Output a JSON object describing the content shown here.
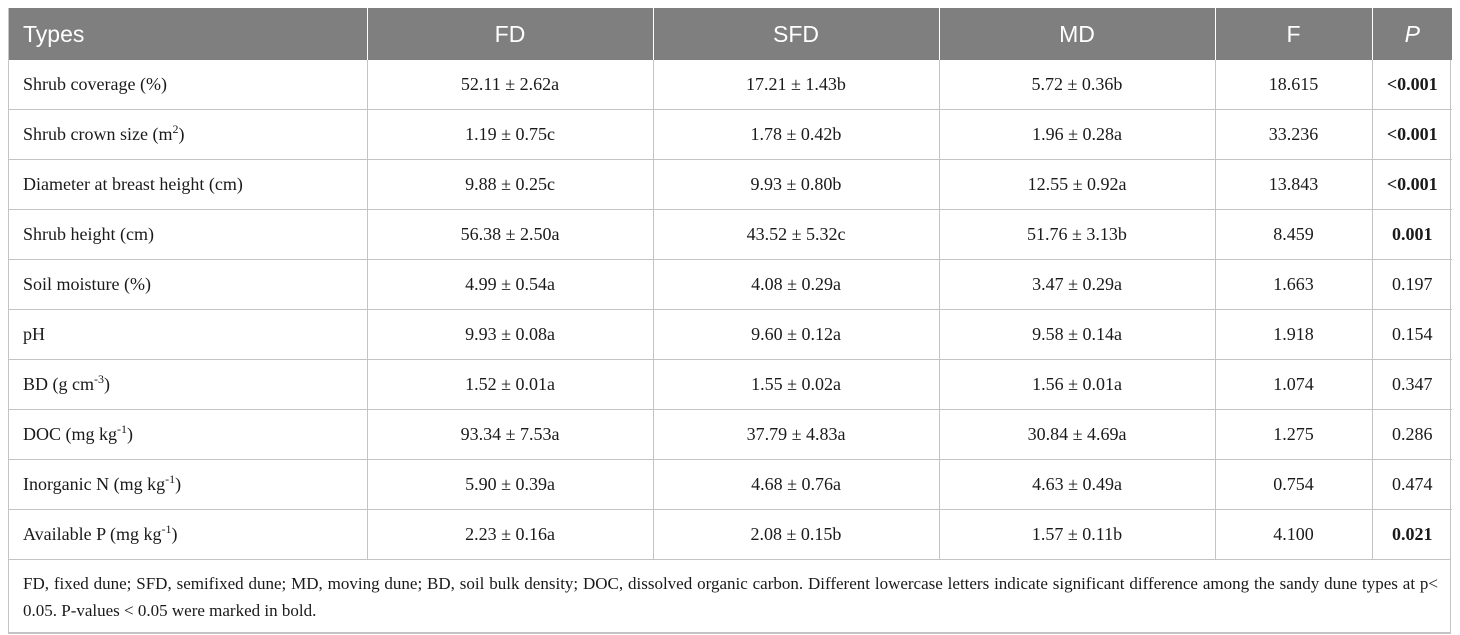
{
  "table": {
    "headers": [
      "Types",
      "FD",
      "SFD",
      "MD",
      "F",
      "P"
    ],
    "rows": [
      {
        "label": "Shrub coverage (%)",
        "sup": "",
        "suffix": "",
        "fd": "52.11 ± 2.62a",
        "sfd": "17.21 ± 1.43b",
        "md": "5.72 ± 0.36b",
        "f": "18.615",
        "p": "<0.001",
        "p_bold": true
      },
      {
        "label": "Shrub crown size (m",
        "sup": "2",
        "suffix": ")",
        "fd": "1.19 ± 0.75c",
        "sfd": "1.78 ± 0.42b",
        "md": "1.96 ± 0.28a",
        "f": "33.236",
        "p": "<0.001",
        "p_bold": true
      },
      {
        "label": "Diameter at breast height (cm)",
        "sup": "",
        "suffix": "",
        "fd": "9.88 ± 0.25c",
        "sfd": "9.93 ± 0.80b",
        "md": "12.55 ± 0.92a",
        "f": "13.843",
        "p": "<0.001",
        "p_bold": true
      },
      {
        "label": "Shrub height (cm)",
        "sup": "",
        "suffix": "",
        "fd": "56.38 ± 2.50a",
        "sfd": "43.52 ± 5.32c",
        "md": "51.76 ± 3.13b",
        "f": "8.459",
        "p": "0.001",
        "p_bold": true
      },
      {
        "label": "Soil moisture (%)",
        "sup": "",
        "suffix": "",
        "fd": "4.99 ± 0.54a",
        "sfd": "4.08 ± 0.29a",
        "md": "3.47 ± 0.29a",
        "f": "1.663",
        "p": "0.197",
        "p_bold": false
      },
      {
        "label": "pH",
        "sup": "",
        "suffix": "",
        "fd": "9.93 ± 0.08a",
        "sfd": "9.60 ± 0.12a",
        "md": "9.58 ± 0.14a",
        "f": "1.918",
        "p": "0.154",
        "p_bold": false
      },
      {
        "label": "BD (g cm",
        "sup": "-3",
        "suffix": ")",
        "fd": "1.52 ± 0.01a",
        "sfd": "1.55 ± 0.02a",
        "md": "1.56 ± 0.01a",
        "f": "1.074",
        "p": "0.347",
        "p_bold": false
      },
      {
        "label": "DOC (mg kg",
        "sup": "-1",
        "suffix": ")",
        "fd": "93.34 ± 7.53a",
        "sfd": "37.79 ± 4.83a",
        "md": "30.84 ± 4.69a",
        "f": "1.275",
        "p": "0.286",
        "p_bold": false
      },
      {
        "label": "Inorganic N (mg kg",
        "sup": "-1",
        "suffix": ")",
        "fd": "5.90 ± 0.39a",
        "sfd": "4.68 ± 0.76a",
        "md": "4.63 ± 0.49a",
        "f": "0.754",
        "p": "0.474",
        "p_bold": false
      },
      {
        "label": "Available P (mg kg",
        "sup": "-1",
        "suffix": ")",
        "fd": "2.23 ± 0.16a",
        "sfd": "2.08 ± 0.15b",
        "md": "1.57 ± 0.11b",
        "f": "4.100",
        "p": "0.021",
        "p_bold": true
      }
    ],
    "footnote": "FD, fixed dune; SFD, semifixed dune; MD, moving dune; BD, soil bulk density; DOC, dissolved organic carbon. Different lowercase letters indicate significant difference among the sandy dune types at p< 0.05. P-values < 0.05 were marked in bold."
  },
  "colors": {
    "header_bg": "#7f7f7f",
    "header_text": "#ffffff",
    "grid_line": "#c4c4c4",
    "body_text": "#1a1a1a"
  }
}
